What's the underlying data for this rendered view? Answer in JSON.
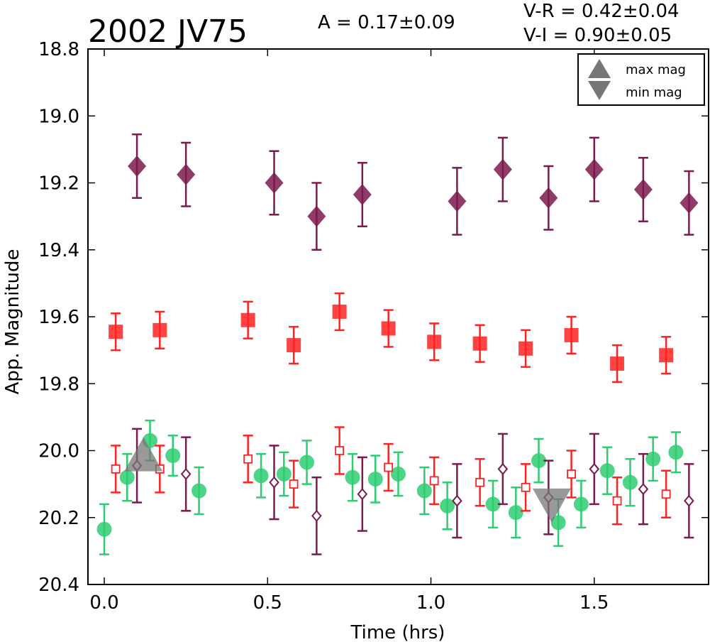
{
  "title": "2002 JV75",
  "annotations": {
    "amplitude": "A  = 0.17±0.09",
    "vr": "V-R = 0.42±0.04",
    "vi": "V-I  = 0.90±0.05"
  },
  "legend": {
    "max_label": "max mag",
    "min_label": "min mag"
  },
  "colors": {
    "purple": "#7b1a4f",
    "red": "#ff2222",
    "green": "#2ecc71",
    "gray": "#777777"
  },
  "chart_data": {
    "type": "scatter",
    "xlabel": "Time (hrs)",
    "ylabel": "App. Magnitude",
    "xlim": [
      -0.05,
      1.85
    ],
    "ylim": [
      20.4,
      18.8
    ],
    "y_inverted": true,
    "xticks": [
      "0.0",
      "0.5",
      "1.0",
      "1.5"
    ],
    "yticks": [
      "18.8",
      "19.0",
      "19.2",
      "19.4",
      "19.6",
      "19.8",
      "20.0",
      "20.2",
      "20.4"
    ],
    "legend_position": "top-right",
    "series": [
      {
        "marker": "filled-diamond",
        "color": "purple",
        "points": [
          {
            "x": 0.1,
            "y": 19.15,
            "err": 0.095
          },
          {
            "x": 0.25,
            "y": 19.175,
            "err": 0.095
          },
          {
            "x": 0.52,
            "y": 19.2,
            "err": 0.095
          },
          {
            "x": 0.65,
            "y": 19.3,
            "err": 0.1
          },
          {
            "x": 0.79,
            "y": 19.235,
            "err": 0.095
          },
          {
            "x": 1.08,
            "y": 19.255,
            "err": 0.1
          },
          {
            "x": 1.22,
            "y": 19.16,
            "err": 0.095
          },
          {
            "x": 1.36,
            "y": 19.245,
            "err": 0.095
          },
          {
            "x": 1.5,
            "y": 19.16,
            "err": 0.095
          },
          {
            "x": 1.65,
            "y": 19.22,
            "err": 0.095
          },
          {
            "x": 1.79,
            "y": 19.26,
            "err": 0.095
          }
        ]
      },
      {
        "marker": "filled-square",
        "color": "red",
        "points": [
          {
            "x": 0.035,
            "y": 19.645,
            "err": 0.055
          },
          {
            "x": 0.17,
            "y": 19.64,
            "err": 0.055
          },
          {
            "x": 0.44,
            "y": 19.61,
            "err": 0.055
          },
          {
            "x": 0.58,
            "y": 19.685,
            "err": 0.055
          },
          {
            "x": 0.72,
            "y": 19.585,
            "err": 0.055
          },
          {
            "x": 0.87,
            "y": 19.635,
            "err": 0.055
          },
          {
            "x": 1.01,
            "y": 19.675,
            "err": 0.055
          },
          {
            "x": 1.15,
            "y": 19.68,
            "err": 0.055
          },
          {
            "x": 1.29,
            "y": 19.695,
            "err": 0.055
          },
          {
            "x": 1.43,
            "y": 19.655,
            "err": 0.055
          },
          {
            "x": 1.57,
            "y": 19.74,
            "err": 0.055
          },
          {
            "x": 1.72,
            "y": 19.715,
            "err": 0.055
          }
        ]
      },
      {
        "marker": "filled-circle",
        "color": "green",
        "points": [
          {
            "x": 0.0,
            "y": 20.235,
            "err": 0.075
          },
          {
            "x": 0.07,
            "y": 20.08,
            "err": 0.07
          },
          {
            "x": 0.14,
            "y": 19.97,
            "err": 0.06
          },
          {
            "x": 0.21,
            "y": 20.015,
            "err": 0.06
          },
          {
            "x": 0.29,
            "y": 20.12,
            "err": 0.07
          },
          {
            "x": 0.48,
            "y": 20.075,
            "err": 0.065
          },
          {
            "x": 0.55,
            "y": 20.07,
            "err": 0.065
          },
          {
            "x": 0.62,
            "y": 20.035,
            "err": 0.065
          },
          {
            "x": 0.76,
            "y": 20.08,
            "err": 0.07
          },
          {
            "x": 0.83,
            "y": 20.085,
            "err": 0.07
          },
          {
            "x": 0.9,
            "y": 20.07,
            "err": 0.065
          },
          {
            "x": 0.98,
            "y": 20.12,
            "err": 0.07
          },
          {
            "x": 1.05,
            "y": 20.165,
            "err": 0.07
          },
          {
            "x": 1.19,
            "y": 20.16,
            "err": 0.07
          },
          {
            "x": 1.26,
            "y": 20.185,
            "err": 0.075
          },
          {
            "x": 1.33,
            "y": 20.03,
            "err": 0.065
          },
          {
            "x": 1.39,
            "y": 20.215,
            "err": 0.07
          },
          {
            "x": 1.46,
            "y": 20.16,
            "err": 0.07
          },
          {
            "x": 1.54,
            "y": 20.06,
            "err": 0.07
          },
          {
            "x": 1.61,
            "y": 20.095,
            "err": 0.07
          },
          {
            "x": 1.68,
            "y": 20.025,
            "err": 0.065
          },
          {
            "x": 1.75,
            "y": 20.005,
            "err": 0.06
          }
        ]
      },
      {
        "marker": "open-square",
        "color": "red",
        "points": [
          {
            "x": 0.035,
            "y": 20.055,
            "err": 0.07
          },
          {
            "x": 0.17,
            "y": 20.055,
            "err": 0.07
          },
          {
            "x": 0.44,
            "y": 20.025,
            "err": 0.07
          },
          {
            "x": 0.58,
            "y": 20.1,
            "err": 0.07
          },
          {
            "x": 0.72,
            "y": 20.0,
            "err": 0.07
          },
          {
            "x": 0.87,
            "y": 20.05,
            "err": 0.07
          },
          {
            "x": 1.01,
            "y": 20.09,
            "err": 0.07
          },
          {
            "x": 1.15,
            "y": 20.095,
            "err": 0.07
          },
          {
            "x": 1.29,
            "y": 20.11,
            "err": 0.07
          },
          {
            "x": 1.43,
            "y": 20.07,
            "err": 0.07
          },
          {
            "x": 1.57,
            "y": 20.15,
            "err": 0.07
          },
          {
            "x": 1.72,
            "y": 20.13,
            "err": 0.07
          }
        ]
      },
      {
        "marker": "open-diamond",
        "color": "purple",
        "points": [
          {
            "x": 0.1,
            "y": 20.045,
            "err": 0.11
          },
          {
            "x": 0.25,
            "y": 20.07,
            "err": 0.11
          },
          {
            "x": 0.52,
            "y": 20.095,
            "err": 0.11
          },
          {
            "x": 0.65,
            "y": 20.195,
            "err": 0.115
          },
          {
            "x": 0.79,
            "y": 20.13,
            "err": 0.11
          },
          {
            "x": 1.08,
            "y": 20.15,
            "err": 0.11
          },
          {
            "x": 1.22,
            "y": 20.055,
            "err": 0.105
          },
          {
            "x": 1.36,
            "y": 20.14,
            "err": 0.11
          },
          {
            "x": 1.5,
            "y": 20.055,
            "err": 0.105
          },
          {
            "x": 1.65,
            "y": 20.115,
            "err": 0.105
          },
          {
            "x": 1.79,
            "y": 20.15,
            "err": 0.11
          }
        ]
      }
    ],
    "extrema": [
      {
        "kind": "max",
        "x": 0.12,
        "y": 20.015
      },
      {
        "kind": "min",
        "x": 1.37,
        "y": 20.16
      }
    ]
  }
}
